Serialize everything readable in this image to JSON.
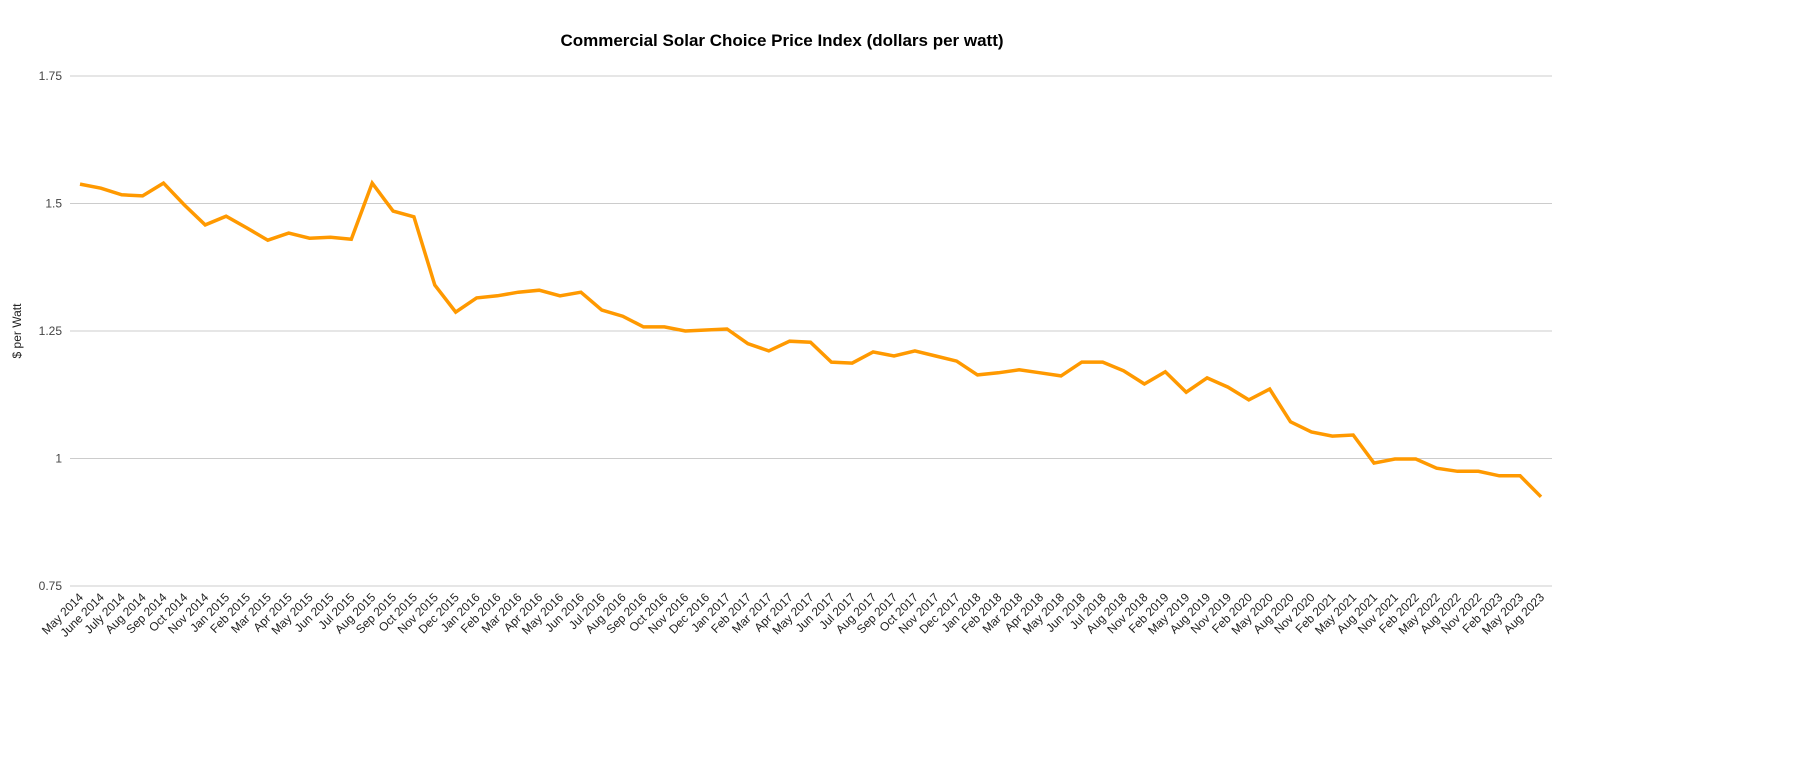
{
  "chart_data": {
    "type": "line",
    "title": "Commercial Solar Choice Price Index (dollars per watt)",
    "xlabel": "",
    "ylabel": "$ per Watt",
    "ylim": [
      0.75,
      1.75
    ],
    "yticks": [
      "0.75",
      "1",
      "1.25",
      "1.5",
      "1.75"
    ],
    "grid": true,
    "legend": "none",
    "line_color": "#ff9900",
    "categories": [
      "May 2014",
      "June 2014",
      "July 2014",
      "Aug 2014",
      "Sep 2014",
      "Oct 2014",
      "Nov 2014",
      "Jan 2015",
      "Feb 2015",
      "Mar 2015",
      "Apr 2015",
      "May 2015",
      "Jun 2015",
      "Jul 2015",
      "Aug 2015",
      "Sep 2015",
      "Oct 2015",
      "Nov 2015",
      "Dec 2015",
      "Jan 2016",
      "Feb 2016",
      "Mar 2016",
      "Apr 2016",
      "May 2016",
      "Jun 2016",
      "Jul 2016",
      "Aug 2016",
      "Sep 2016",
      "Oct 2016",
      "Nov 2016",
      "Dec 2016",
      "Jan 2017",
      "Feb 2017",
      "Mar 2017",
      "Apr 2017",
      "May 2017",
      "Jun 2017",
      "Jul 2017",
      "Aug 2017",
      "Sep 2017",
      "Oct 2017",
      "Nov 2017",
      "Dec 2017",
      "Jan 2018",
      "Feb 2018",
      "Mar 2018",
      "Apr 2018",
      "May 2018",
      "Jun 2018",
      "Jul 2018",
      "Aug 2018",
      "Nov 2018",
      "Feb 2019",
      "May 2019",
      "Aug 2019",
      "Nov 2019",
      "Feb 2020",
      "May 2020",
      "Aug 2020",
      "Nov 2020",
      "Feb 2021",
      "May 2021",
      "Aug 2021",
      "Nov 2021",
      "Feb 2022",
      "May 2022",
      "Aug 2022",
      "Nov 2022",
      "Feb 2023",
      "May 2023",
      "Aug 2023"
    ],
    "values": [
      1.538,
      1.53,
      1.517,
      1.515,
      1.54,
      1.497,
      1.458,
      1.475,
      1.452,
      1.428,
      1.442,
      1.432,
      1.434,
      1.43,
      1.54,
      1.485,
      1.474,
      1.34,
      1.287,
      1.315,
      1.319,
      1.326,
      1.33,
      1.319,
      1.326,
      1.291,
      1.279,
      1.258,
      1.258,
      1.25,
      1.252,
      1.254,
      1.225,
      1.211,
      1.23,
      1.228,
      1.189,
      1.187,
      1.209,
      1.201,
      1.211,
      1.201,
      1.191,
      1.164,
      1.168,
      1.174,
      1.168,
      1.162,
      1.189,
      1.189,
      1.172,
      1.146,
      1.17,
      1.13,
      1.158,
      1.14,
      1.115,
      1.136,
      1.072,
      1.052,
      1.044,
      1.046,
      0.991,
      0.999,
      0.999,
      0.981,
      0.975,
      0.975,
      0.966,
      0.966,
      0.925
    ]
  }
}
